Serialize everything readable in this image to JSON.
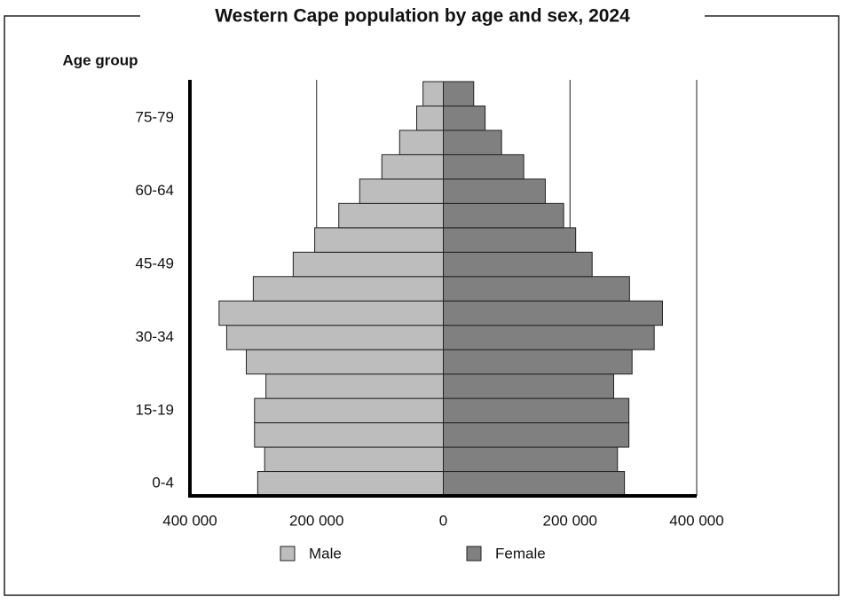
{
  "chart_data": {
    "type": "pyramid",
    "title": "Western Cape population by age and sex, 2024",
    "y_label": "Age group",
    "categories": [
      "0-4",
      null,
      null,
      "15-19",
      null,
      null,
      "30-34",
      null,
      null,
      "45-49",
      null,
      null,
      "60-64",
      null,
      null,
      "75-79",
      null
    ],
    "series": [
      {
        "name": "Male",
        "color": "#bdbdbd",
        "values": [
          -293000,
          -282000,
          -298000,
          -298000,
          -280000,
          -311000,
          -342000,
          -354000,
          -300000,
          -237000,
          -203000,
          -165000,
          -132000,
          -97000,
          -69000,
          -42000,
          -32000
        ]
      },
      {
        "name": "Female",
        "color": "#808080",
        "values": [
          286000,
          275000,
          293000,
          293000,
          269000,
          298000,
          333000,
          346000,
          294000,
          235000,
          209000,
          190000,
          161000,
          127000,
          92000,
          66000,
          48000
        ]
      }
    ],
    "xlim": [
      -400000,
      400000
    ],
    "xticks": [
      {
        "value": -400000,
        "label": "400 000"
      },
      {
        "value": -200000,
        "label": "200 000"
      },
      0,
      {
        "value": 200000,
        "label": "200 000"
      },
      {
        "value": 400000,
        "label": "400 000"
      }
    ],
    "grid": true
  }
}
